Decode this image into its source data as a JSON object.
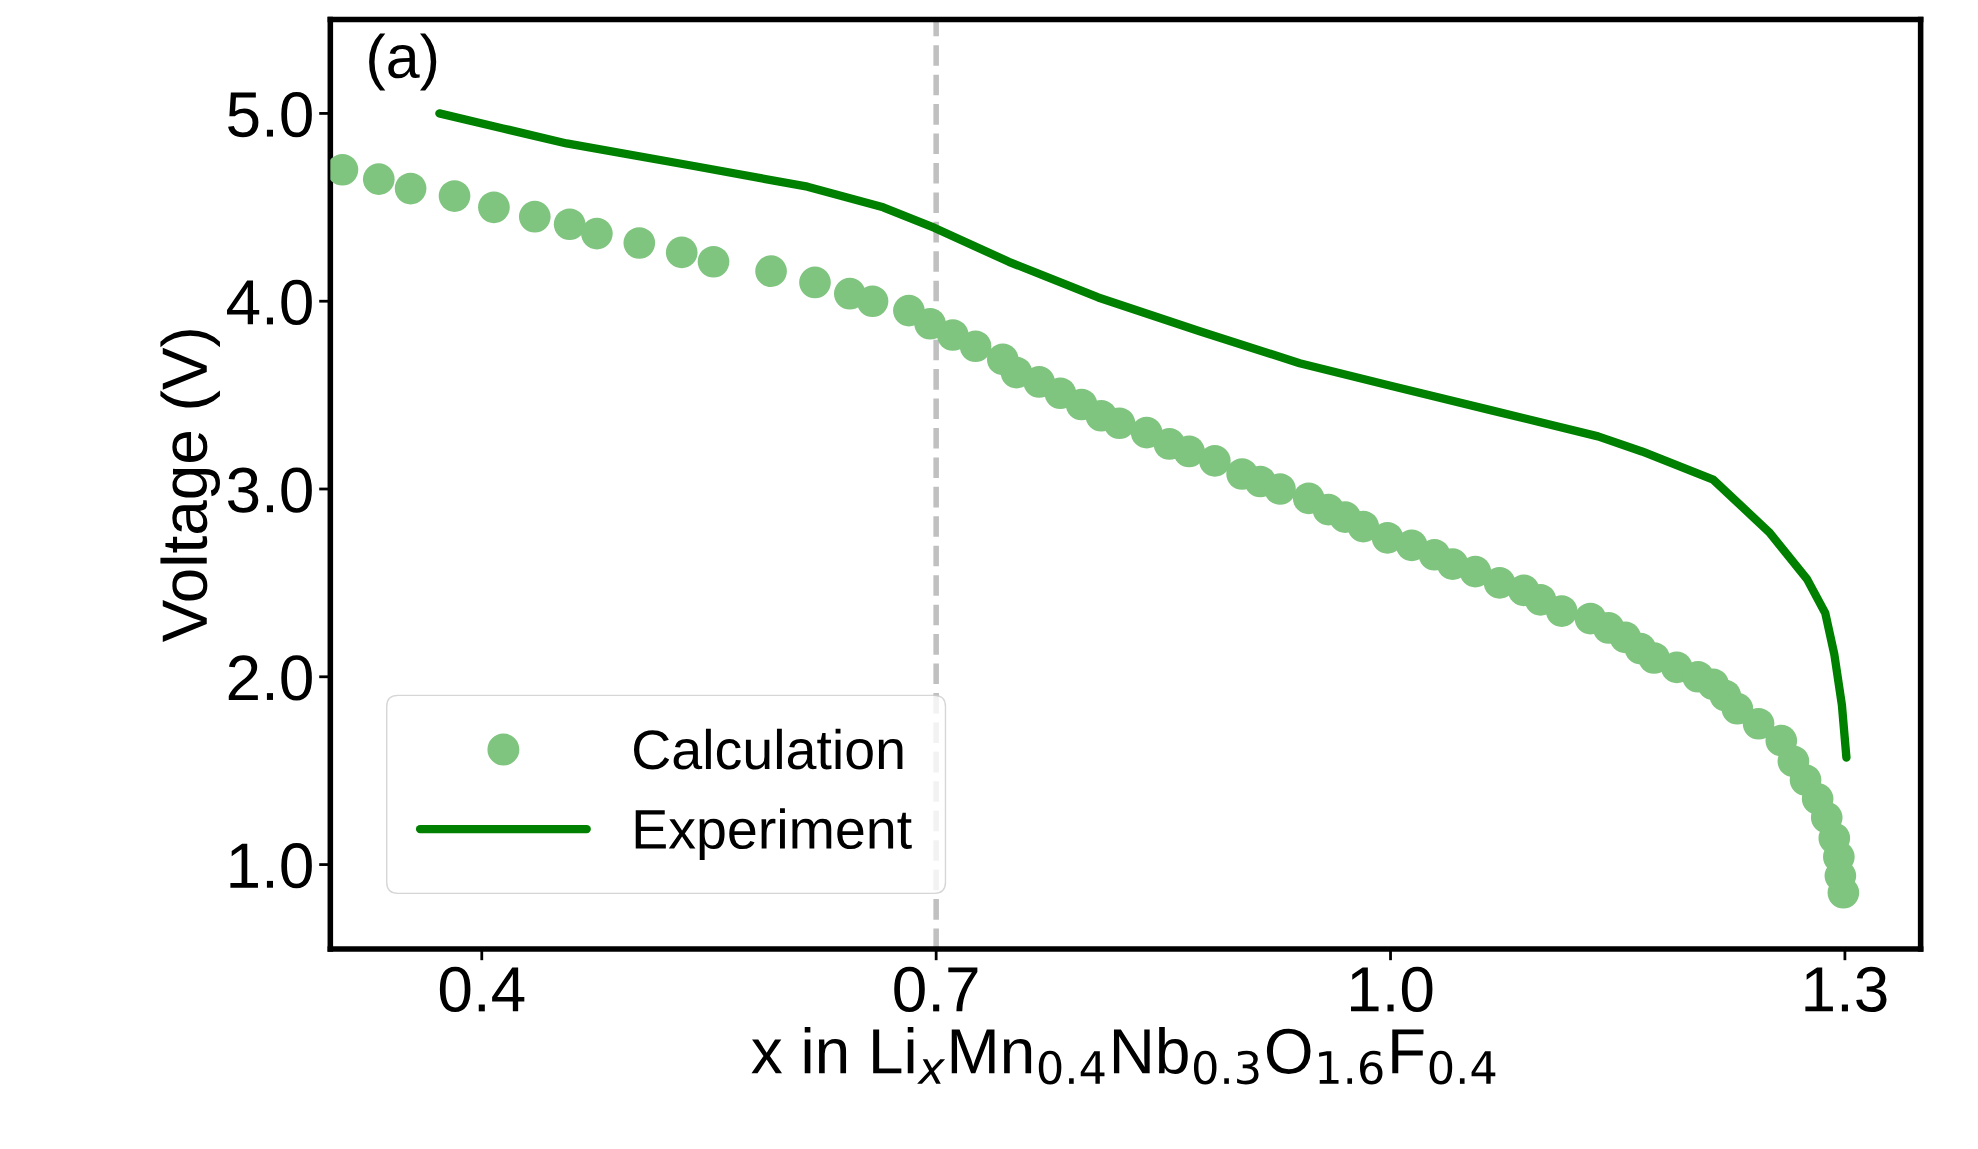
{
  "chart_data": {
    "type": "scatter",
    "xlabel": "x in Li$_{x}$Mn$_{0.4}$Nb$_{0.3}$O$_{1.6}$F$_{0.4}$",
    "ylabel": "Voltage (V)",
    "annotations": [
      "(a)"
    ],
    "xlim": [
      0.3,
      1.35
    ],
    "ylim": [
      0.55,
      5.5
    ],
    "xticks": [
      0.4,
      0.7,
      {
        "value": 1,
        "label": "1.0"
      },
      1.3
    ],
    "yticks": [
      {
        "value": 1,
        "label": "1.0"
      },
      {
        "value": 2,
        "label": "2.0"
      },
      {
        "value": 3,
        "label": "3.0"
      },
      {
        "value": 4,
        "label": "4.0"
      },
      {
        "value": 5,
        "label": "5.0"
      }
    ],
    "grid": false,
    "legend": "bottom left",
    "ref_lines": [
      {
        "axis": "x",
        "value": 0.7,
        "color": "#c0c0c0",
        "line_style": "dashed"
      }
    ],
    "series": [
      {
        "name": "Calculation",
        "marker": "circle",
        "color": "#7fc47f",
        "x": [
          0.308,
          0.332,
          0.353,
          0.382,
          0.408,
          0.435,
          0.458,
          0.476,
          0.504,
          0.532,
          0.553,
          0.591,
          0.62,
          0.643,
          0.658,
          0.682,
          0.696,
          0.711,
          0.726,
          0.744,
          0.753,
          0.768,
          0.782,
          0.796,
          0.809,
          0.821,
          0.839,
          0.854,
          0.867,
          0.884,
          0.902,
          0.914,
          0.927,
          0.946,
          0.959,
          0.97,
          0.982,
          0.998,
          1.014,
          1.029,
          1.041,
          1.056,
          1.072,
          1.088,
          1.099,
          1.113,
          1.132,
          1.144,
          1.155,
          1.165,
          1.174,
          1.189,
          1.203,
          1.213,
          1.221,
          1.229,
          1.243,
          1.258,
          1.266,
          1.274,
          1.282,
          1.288,
          1.293,
          1.296,
          1.297,
          1.299
        ],
        "values": [
          4.7,
          4.65,
          4.6,
          4.56,
          4.5,
          4.45,
          4.41,
          4.36,
          4.31,
          4.26,
          4.21,
          4.16,
          4.1,
          4.04,
          4.0,
          3.95,
          3.88,
          3.82,
          3.76,
          3.69,
          3.62,
          3.57,
          3.51,
          3.45,
          3.39,
          3.35,
          3.3,
          3.24,
          3.2,
          3.15,
          3.08,
          3.04,
          3.0,
          2.95,
          2.89,
          2.85,
          2.8,
          2.74,
          2.7,
          2.65,
          2.6,
          2.56,
          2.5,
          2.46,
          2.41,
          2.35,
          2.31,
          2.26,
          2.21,
          2.15,
          2.1,
          2.05,
          2.0,
          1.96,
          1.9,
          1.83,
          1.75,
          1.66,
          1.55,
          1.45,
          1.35,
          1.25,
          1.14,
          1.04,
          0.94,
          0.85
        ]
      },
      {
        "name": "Experiment",
        "type": "line",
        "marker": "none",
        "line_style": "solid",
        "color": "#008000",
        "x": [
          0.372,
          0.414,
          0.456,
          0.54,
          0.615,
          0.665,
          0.699,
          0.748,
          0.807,
          0.874,
          0.94,
          1.0,
          1.066,
          1.137,
          1.166,
          1.213,
          1.25,
          1.275,
          1.287,
          1.293,
          1.298,
          1.301
        ],
        "values": [
          5.0,
          4.92,
          4.84,
          4.72,
          4.61,
          4.5,
          4.39,
          4.21,
          4.02,
          3.84,
          3.67,
          3.55,
          3.42,
          3.28,
          3.2,
          3.05,
          2.77,
          2.52,
          2.34,
          2.12,
          1.85,
          1.57
        ]
      }
    ]
  }
}
